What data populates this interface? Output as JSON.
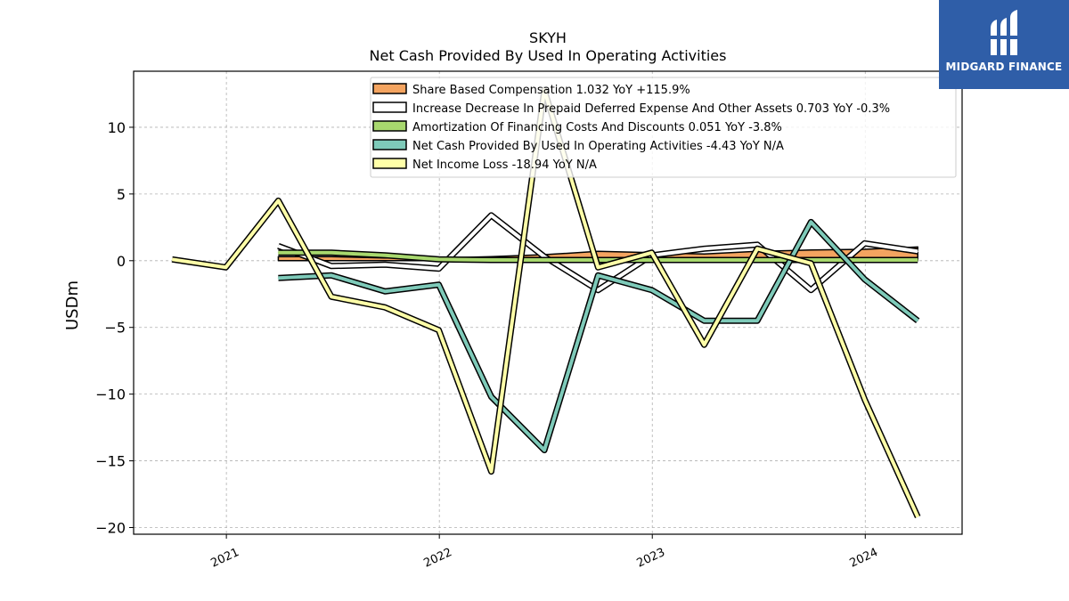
{
  "brand": {
    "name": "MIDGARD FINANCE",
    "bg": "#2f5ea8"
  },
  "chart_data": {
    "type": "line",
    "title": "SKYH",
    "subtitle": "Net Cash Provided By Used In Operating Activities",
    "ylabel": "USDm",
    "xlabel": "",
    "ylim": [
      -20.5,
      14.2
    ],
    "xlim": [
      "2020-07-26",
      "2024-06-15"
    ],
    "yticks": [
      10,
      5,
      0,
      -5,
      -10,
      -15,
      -20
    ],
    "ytick_labels": [
      "10",
      "5",
      "0",
      "−5",
      "−10",
      "−15",
      "−20"
    ],
    "xticks": [
      "2021-01-01",
      "2022-01-01",
      "2023-01-01",
      "2024-01-01"
    ],
    "xtick_labels": [
      "2021",
      "2022",
      "2023",
      "2024"
    ],
    "grid": true,
    "legend_position": "top-right",
    "series": [
      {
        "name": "Share Based Compensation",
        "legend": "Share Based Compensation  1.032 YoY +115.9%",
        "color": "#f4a460",
        "style": "area",
        "x": [
          "2021-03-31",
          "2021-06-30",
          "2021-09-30",
          "2021-12-31",
          "2022-03-31",
          "2022-06-30",
          "2022-09-30",
          "2022-12-31",
          "2023-03-31",
          "2023-06-30",
          "2023-09-30",
          "2023-12-31",
          "2024-03-31"
        ],
        "values": [
          0.3,
          0.3,
          0.2,
          0.2,
          0.3,
          0.45,
          0.7,
          0.6,
          0.5,
          0.7,
          0.8,
          0.85,
          1.03
        ]
      },
      {
        "name": "Increase Decrease In Prepaid Deferred Expense And Other Assets",
        "legend": "Increase Decrease In Prepaid Deferred Expense And Other Assets  0.703 YoY -0.3%",
        "color": "#ffffff",
        "style": "line",
        "x": [
          "2021-03-31",
          "2021-06-30",
          "2021-09-30",
          "2021-12-31",
          "2022-03-31",
          "2022-06-30",
          "2022-09-30",
          "2022-12-31",
          "2023-03-31",
          "2023-06-30",
          "2023-09-30",
          "2023-12-31",
          "2024-03-31"
        ],
        "values": [
          1.1,
          -0.4,
          -0.3,
          -0.6,
          3.4,
          0.3,
          -2.2,
          0.4,
          0.9,
          1.2,
          -2.2,
          1.3,
          0.7
        ]
      },
      {
        "name": "Amortization Of Financing Costs And Discounts",
        "legend": "Amortization Of Financing Costs And Discounts  0.051 YoY -3.8%",
        "color": "#a8d86e",
        "style": "line",
        "x": [
          "2021-03-31",
          "2021-06-30",
          "2021-09-30",
          "2021-12-31",
          "2022-03-31",
          "2022-06-30",
          "2022-09-30",
          "2022-12-31",
          "2023-03-31",
          "2023-06-30",
          "2023-09-30",
          "2023-12-31",
          "2024-03-31"
        ],
        "values": [
          0.6,
          0.6,
          0.4,
          0.1,
          0.05,
          0.05,
          0.05,
          0.05,
          0.05,
          0.05,
          0.05,
          0.05,
          0.05
        ]
      },
      {
        "name": "Net Cash Provided By Used In Operating Activities",
        "legend": "Net Cash Provided By Used In Operating Activities  -4.43 YoY N/A",
        "color": "#7ecab9",
        "style": "line",
        "x": [
          "2021-03-31",
          "2021-06-30",
          "2021-09-30",
          "2021-12-31",
          "2022-03-31",
          "2022-06-30",
          "2022-09-30",
          "2022-12-31",
          "2023-03-31",
          "2023-06-30",
          "2023-09-30",
          "2023-12-31",
          "2024-03-31"
        ],
        "values": [
          -1.3,
          -1.1,
          -2.3,
          -1.8,
          -10.2,
          -14.2,
          -1.1,
          -2.2,
          -4.5,
          -4.5,
          2.9,
          -1.4,
          -4.5
        ]
      },
      {
        "name": "Net Income Loss",
        "legend": "Net Income Loss  -18.94 YoY N/A",
        "color": "#ffffa8",
        "style": "line",
        "x": [
          "2020-09-30",
          "2020-12-31",
          "2021-03-31",
          "2021-06-30",
          "2021-09-30",
          "2021-12-31",
          "2022-03-31",
          "2022-06-30",
          "2022-09-30",
          "2022-12-31",
          "2023-03-31",
          "2023-06-30",
          "2023-09-30",
          "2023-12-31",
          "2024-03-31"
        ],
        "values": [
          0.1,
          -0.5,
          4.5,
          -2.7,
          -3.5,
          -5.2,
          -15.8,
          12.8,
          -0.5,
          0.6,
          -6.3,
          0.9,
          -0.2,
          -10.4,
          -19.2
        ]
      }
    ]
  }
}
